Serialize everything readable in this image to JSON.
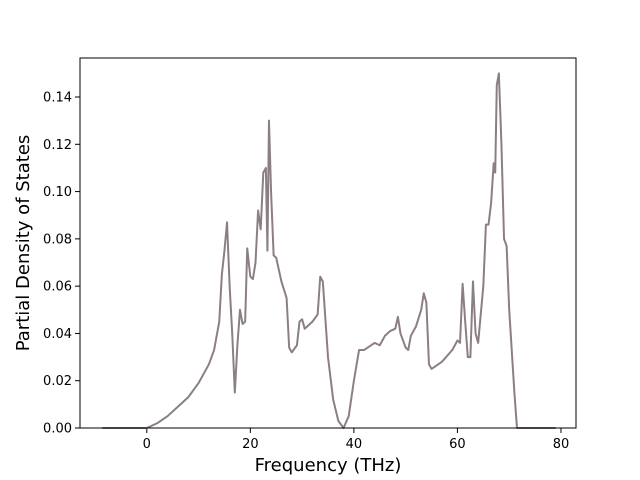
{
  "chart_data": {
    "type": "line",
    "x_label": "Frequency (THz)",
    "y_label": "Partial Density of States",
    "xlim": [
      -12.9,
      82.9
    ],
    "ylim": [
      0,
      0.1565
    ],
    "xticks": [
      0,
      20,
      40,
      60,
      80
    ],
    "yticks": [
      {
        "value": 0,
        "label": "0.00"
      },
      {
        "value": 0.02,
        "label": "0.02"
      },
      {
        "value": 0.04,
        "label": "0.04"
      },
      {
        "value": 0.06,
        "label": "0.06"
      },
      {
        "value": 0.08,
        "label": "0.08"
      },
      {
        "value": 0.1,
        "label": "0.10"
      },
      {
        "value": 0.12,
        "label": "0.12"
      },
      {
        "value": 0.14,
        "label": "0.14"
      }
    ],
    "x": [
      -8.6,
      0,
      1,
      2,
      4,
      6,
      8,
      10,
      12,
      13,
      14,
      14.5,
      15,
      15.5,
      16,
      16.5,
      17,
      17.5,
      18,
      18.5,
      19,
      19.4,
      20,
      20.5,
      21,
      21.5,
      22,
      22.5,
      23,
      23.3,
      23.6,
      24,
      24.5,
      25,
      26,
      27,
      27.5,
      28,
      29,
      29.5,
      30,
      30.5,
      32,
      33,
      33.5,
      34,
      35,
      36,
      37,
      38,
      39,
      40,
      41,
      42,
      44,
      45,
      46,
      47,
      48,
      48.5,
      49,
      50,
      50.5,
      51,
      52,
      53,
      53.5,
      54,
      54.5,
      55,
      57,
      59,
      60,
      60.5,
      61,
      61.5,
      62,
      62.5,
      63,
      63.5,
      64,
      65,
      65.5,
      66,
      66.5,
      67,
      67.3,
      67.6,
      68,
      68.5,
      69,
      69.5,
      70,
      71,
      71.5,
      79
    ],
    "series": [
      {
        "color": "#8c7f84",
        "values": [
          0,
          0,
          0.001,
          0.002,
          0.005,
          0.009,
          0.013,
          0.019,
          0.027,
          0.033,
          0.045,
          0.065,
          0.075,
          0.087,
          0.06,
          0.04,
          0.015,
          0.035,
          0.05,
          0.044,
          0.045,
          0.076,
          0.064,
          0.063,
          0.07,
          0.092,
          0.084,
          0.108,
          0.11,
          0.075,
          0.13,
          0.1,
          0.073,
          0.072,
          0.062,
          0.055,
          0.034,
          0.032,
          0.035,
          0.045,
          0.046,
          0.042,
          0.045,
          0.048,
          0.064,
          0.062,
          0.03,
          0.012,
          0.003,
          0,
          0.005,
          0.02,
          0.033,
          0.033,
          0.036,
          0.035,
          0.039,
          0.041,
          0.042,
          0.047,
          0.04,
          0.034,
          0.033,
          0.039,
          0.043,
          0.05,
          0.057,
          0.053,
          0.027,
          0.025,
          0.028,
          0.033,
          0.037,
          0.036,
          0.061,
          0.045,
          0.03,
          0.03,
          0.062,
          0.04,
          0.036,
          0.06,
          0.086,
          0.086,
          0.095,
          0.112,
          0.108,
          0.145,
          0.15,
          0.12,
          0.08,
          0.077,
          0.05,
          0.015,
          0,
          0
        ]
      }
    ]
  }
}
